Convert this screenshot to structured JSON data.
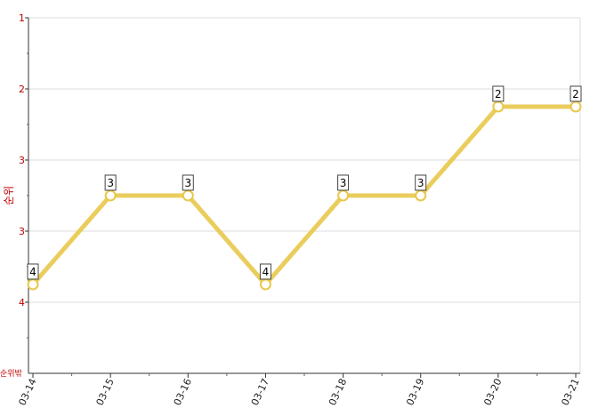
{
  "chart_data": {
    "type": "line",
    "title": "",
    "ylabel": "순위",
    "y_out_of_range_label": "순위밖",
    "y_axis_inverted": true,
    "ylim": [
      1,
      6
    ],
    "y_tick_values": [
      1,
      2,
      3,
      4,
      5
    ],
    "y_tick_labels": [
      "1",
      "2",
      "3",
      "3",
      "4"
    ],
    "grid": true,
    "x": [
      "03-14",
      "03-15",
      "03-16",
      "03-17",
      "03-18",
      "03-19",
      "03-20",
      "03-21"
    ],
    "series": [
      {
        "values": [
          4.75,
          3.5,
          3.5,
          4.75,
          3.5,
          3.5,
          2.25,
          2.25
        ],
        "point_labels": [
          "4",
          "3",
          "3",
          "4",
          "3",
          "3",
          "2",
          "2"
        ],
        "color": "#e8c84a"
      }
    ]
  }
}
